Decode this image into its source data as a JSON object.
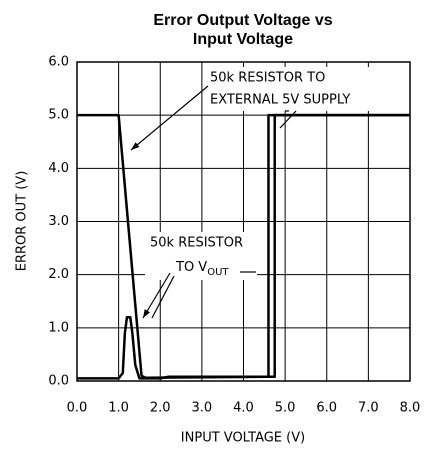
{
  "chart_data": {
    "type": "line",
    "title_lines": [
      "Error Output Voltage vs",
      "Input Voltage"
    ],
    "xlabel": "INPUT VOLTAGE (V)",
    "ylabel": "ERROR OUT (V)",
    "xlim": [
      0,
      8
    ],
    "ylim": [
      0,
      6
    ],
    "xticks": [
      {
        "value": 0,
        "label": "0.0"
      },
      {
        "value": 1,
        "label": "1.0"
      },
      {
        "value": 2,
        "label": "2.0"
      },
      {
        "value": 3,
        "label": "3.0"
      },
      {
        "value": 4,
        "label": "4.0"
      },
      {
        "value": 5,
        "label": "5.0"
      },
      {
        "value": 6,
        "label": "6.0"
      },
      {
        "value": 7,
        "label": "7.0"
      },
      {
        "value": 8,
        "label": "8.0"
      }
    ],
    "yticks": [
      {
        "value": 0,
        "label": "0.0"
      },
      {
        "value": 1,
        "label": "1.0"
      },
      {
        "value": 2,
        "label": "2.0"
      },
      {
        "value": 3,
        "label": "3.0"
      },
      {
        "value": 4,
        "label": "4.0"
      },
      {
        "value": 5,
        "label": "5.0"
      },
      {
        "value": 6,
        "label": "6.0"
      }
    ],
    "grid": true,
    "series": [
      {
        "color": "#000000",
        "x": [
          0,
          1.0,
          1.55,
          1.65,
          4.6,
          4.6,
          8.0
        ],
        "values": [
          5.0,
          5.0,
          0.1,
          0.06,
          0.08,
          5.0,
          5.0
        ]
      },
      {
        "color": "#000000",
        "x": [
          0,
          1.0,
          1.1,
          1.15,
          1.2,
          1.28,
          1.33,
          1.4,
          1.5,
          2.0,
          2.2,
          4.75,
          4.75,
          8.0
        ],
        "values": [
          0.05,
          0.05,
          0.15,
          0.9,
          1.2,
          1.2,
          0.9,
          0.3,
          0.05,
          0.05,
          0.08,
          0.08,
          5.0,
          5.0
        ]
      }
    ],
    "annotations": [
      {
        "lines": [
          "50k RESISTOR TO",
          "EXTERNAL 5V SUPPLY"
        ]
      },
      {
        "lines": [
          "50k RESISTOR",
          "TO V"
        ],
        "sub": "OUT"
      }
    ]
  }
}
